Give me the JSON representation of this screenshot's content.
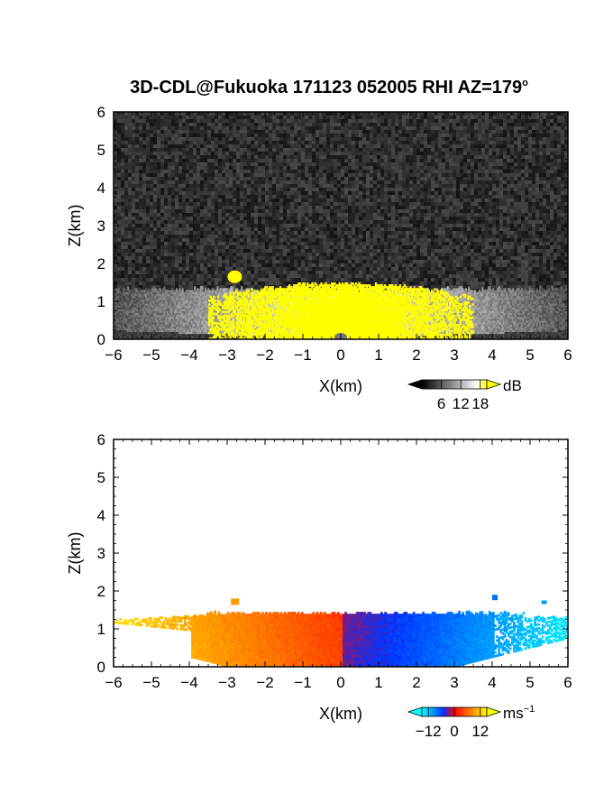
{
  "title": "3D-CDL@Fukuoka 171123 052005 RHI AZ=179",
  "title_sup": "o",
  "chart_data": [
    {
      "type": "heatmap",
      "panel": "top",
      "quantity": "backscatter intensity",
      "xlabel": "X(km)",
      "ylabel": "Z(km)",
      "xlim": [
        -6,
        6
      ],
      "ylim": [
        0,
        6
      ],
      "xticks": [
        "−6",
        "−5",
        "−4",
        "−3",
        "−2",
        "−1",
        "0",
        "1",
        "2",
        "3",
        "4",
        "5",
        "6"
      ],
      "yticks": [
        "0",
        "1",
        "2",
        "3",
        "4",
        "5",
        "6"
      ],
      "colorbar": {
        "unit": "dB",
        "ticks": [
          "6",
          "12",
          "18"
        ],
        "range": [
          0,
          20
        ],
        "colors": [
          "#000000",
          "#ffffff",
          "#ffff00"
        ]
      },
      "boundary_layer_top_km": 1.3,
      "saturated_region": {
        "x": [
          -3.5,
          3.5
        ],
        "z": [
          0,
          1.6
        ],
        "color": "#ffff00"
      }
    },
    {
      "type": "heatmap",
      "panel": "bottom",
      "quantity": "radial velocity",
      "xlabel": "X(km)",
      "ylabel": "Z(km)",
      "xlim": [
        -6,
        6
      ],
      "ylim": [
        0,
        6
      ],
      "xticks": [
        "−6",
        "−5",
        "−4",
        "−3",
        "−2",
        "−1",
        "0",
        "1",
        "2",
        "3",
        "4",
        "5",
        "6"
      ],
      "yticks": [
        "0",
        "1",
        "2",
        "3",
        "4",
        "5",
        "6"
      ],
      "colorbar": {
        "unit": "ms",
        "unit_sup": "−1",
        "ticks": [
          "−12",
          "0",
          "12"
        ],
        "range": [
          -15,
          15
        ],
        "colors": [
          "#00ffff",
          "#0033ff",
          "#ff0000",
          "#ffff00"
        ]
      },
      "velocity_left_of_zero": "positive (red–yellow)",
      "velocity_right_of_zero": "negative (blue–cyan)",
      "echo_top_km": 1.4
    }
  ]
}
